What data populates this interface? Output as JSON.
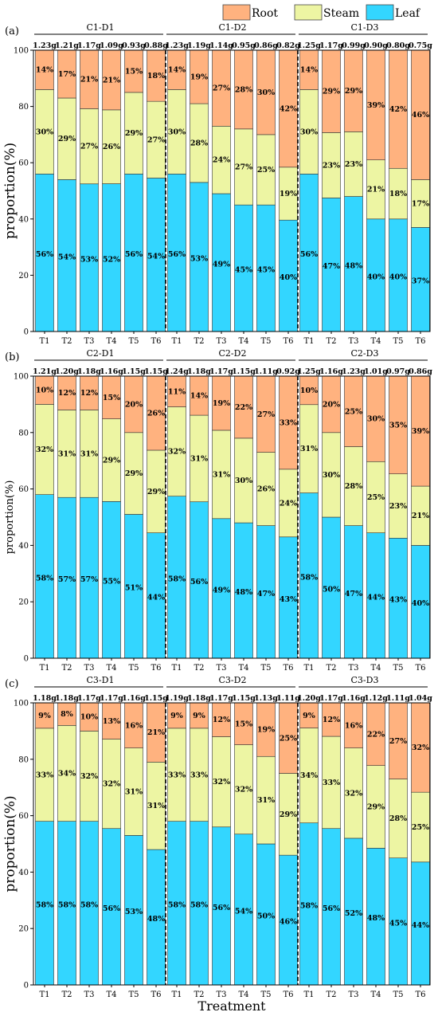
{
  "legend": [
    {
      "name": "Root",
      "color": "#FFB27F"
    },
    {
      "name": "Steam",
      "color": "#EDF5A3"
    },
    {
      "name": "Leaf",
      "color": "#33D6FF"
    }
  ],
  "xlabel": "Treatment",
  "ylabel": "proportion(%)",
  "chart_data": [
    {
      "type": "bar",
      "stacked": true,
      "panel": "(a)",
      "ylim": [
        0,
        100
      ],
      "yticks": [
        0,
        20,
        40,
        60,
        80,
        100
      ],
      "categories": [
        "T1",
        "T2",
        "T3",
        "T4",
        "T5",
        "T6"
      ],
      "groups": [
        {
          "name": "C1-D1",
          "weights": [
            "1.23g",
            "1.21g",
            "1.17g",
            "1.09g",
            "0.93g",
            "0.88g"
          ],
          "leaf": [
            56,
            54,
            53,
            52,
            56,
            54
          ],
          "steam": [
            30,
            29,
            27,
            26,
            29,
            27
          ],
          "root": [
            14,
            17,
            21,
            21,
            15,
            18
          ]
        },
        {
          "name": "C1-D2",
          "weights": [
            "1.23g",
            "1.19g",
            "1.14g",
            "0.95g",
            "0.86g",
            "0.82g"
          ],
          "leaf": [
            56,
            53,
            49,
            45,
            45,
            40
          ],
          "steam": [
            30,
            28,
            24,
            27,
            25,
            19
          ],
          "root": [
            14,
            19,
            27,
            28,
            30,
            42
          ]
        },
        {
          "name": "C1-D3",
          "weights": [
            "1.25g",
            "1.17g",
            "0.99g",
            "0.90g",
            "0.80g",
            "0.75g"
          ],
          "leaf": [
            56,
            47,
            48,
            40,
            40,
            37
          ],
          "steam": [
            30,
            23,
            23,
            21,
            18,
            17
          ],
          "root": [
            14,
            29,
            29,
            39,
            42,
            46
          ]
        }
      ]
    },
    {
      "type": "bar",
      "stacked": true,
      "panel": "(b)",
      "ylim": [
        0,
        100
      ],
      "yticks": [
        0,
        20,
        40,
        60,
        80,
        100
      ],
      "categories": [
        "T1",
        "T2",
        "T3",
        "T4",
        "T5",
        "T6"
      ],
      "groups": [
        {
          "name": "C2-D1",
          "weights": [
            "1.21g",
            "1.20g",
            "1.18g",
            "1.16g",
            "1.15g",
            "1.15g"
          ],
          "leaf": [
            58,
            57,
            57,
            55,
            51,
            44
          ],
          "steam": [
            32,
            31,
            31,
            29,
            29,
            29
          ],
          "root": [
            10,
            12,
            12,
            15,
            20,
            26
          ]
        },
        {
          "name": "C2-D2",
          "weights": [
            "1.24g",
            "1.18g",
            "1.17g",
            "1.15g",
            "1.11g",
            "0.92g"
          ],
          "leaf": [
            58,
            56,
            49,
            48,
            47,
            43
          ],
          "steam": [
            32,
            31,
            31,
            30,
            26,
            24
          ],
          "root": [
            11,
            14,
            19,
            22,
            27,
            33
          ]
        },
        {
          "name": "C2-D3",
          "weights": [
            "1.25g",
            "1.16g",
            "1.23g",
            "1.01g",
            "0.97g",
            "0.86g"
          ],
          "leaf": [
            58,
            50,
            47,
            44,
            43,
            40
          ],
          "steam": [
            31,
            30,
            28,
            25,
            23,
            21
          ],
          "root": [
            10,
            20,
            25,
            30,
            35,
            39
          ]
        }
      ]
    },
    {
      "type": "bar",
      "stacked": true,
      "panel": "(c)",
      "ylim": [
        0,
        100
      ],
      "yticks": [
        0,
        20,
        40,
        60,
        80,
        100
      ],
      "categories": [
        "T1",
        "T2",
        "T3",
        "T4",
        "T5",
        "T6"
      ],
      "groups": [
        {
          "name": "C3-D1",
          "weights": [
            "1.18g",
            "1.18g",
            "1.17g",
            "1.17g",
            "1.16g",
            "1.15g"
          ],
          "leaf": [
            58,
            58,
            58,
            56,
            53,
            48
          ],
          "steam": [
            33,
            34,
            32,
            32,
            31,
            31
          ],
          "root": [
            9,
            8,
            10,
            13,
            16,
            21
          ]
        },
        {
          "name": "C3-D2",
          "weights": [
            "1.19g",
            "1.18g",
            "1.17g",
            "1.15g",
            "1.13g",
            "1.11g"
          ],
          "leaf": [
            58,
            58,
            56,
            54,
            50,
            46
          ],
          "steam": [
            33,
            33,
            32,
            32,
            31,
            29
          ],
          "root": [
            9,
            9,
            12,
            15,
            19,
            25
          ]
        },
        {
          "name": "C3-D3",
          "weights": [
            "1.20g",
            "1.17g",
            "1.16g",
            "1.12g",
            "1.11g",
            "1.04g"
          ],
          "leaf": [
            58,
            56,
            52,
            48,
            45,
            44
          ],
          "steam": [
            34,
            33,
            32,
            29,
            28,
            25
          ],
          "root": [
            9,
            12,
            16,
            22,
            27,
            32
          ]
        }
      ]
    }
  ]
}
